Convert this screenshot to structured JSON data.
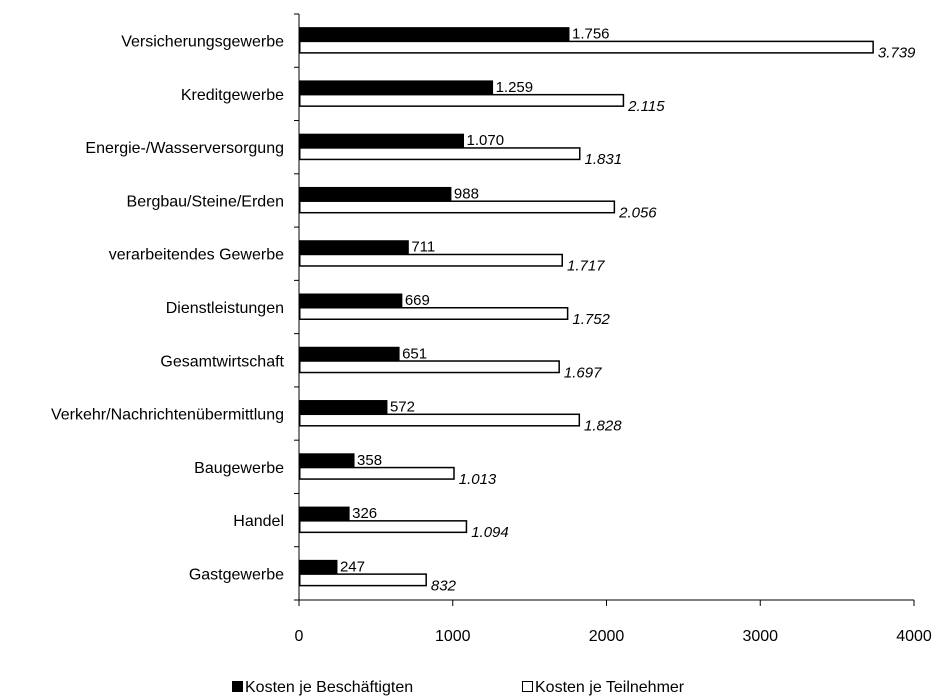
{
  "chart_data": {
    "type": "bar",
    "orientation": "horizontal",
    "categories": [
      "Versicherungsgewerbe",
      "Kreditgewerbe",
      "Energie-/Wasserversorgung",
      "Bergbau/Steine/Erden",
      "verarbeitendes Gewerbe",
      "Dienstleistungen",
      "Gesamtwirtschaft",
      "Verkehr/Nachrichtenübermittlung",
      "Baugewerbe",
      "Handel",
      "Gastgewerbe"
    ],
    "series": [
      {
        "name": "Kosten je Beschäftigten",
        "values": [
          1756,
          1259,
          1070,
          988,
          711,
          669,
          651,
          572,
          358,
          326,
          247
        ],
        "labels": [
          "1.756",
          "1.259",
          "1.070",
          "988",
          "711",
          "669",
          "651",
          "572",
          "358",
          "326",
          "247"
        ],
        "fill": "#000000"
      },
      {
        "name": "Kosten je Teilnehmer",
        "values": [
          3739,
          2115,
          1831,
          2056,
          1717,
          1752,
          1697,
          1828,
          1013,
          1094,
          832
        ],
        "labels": [
          "3.739",
          "2.115",
          "1.831",
          "2.056",
          "1.717",
          "1.752",
          "1.697",
          "1.828",
          "1.013",
          "1.094",
          "832"
        ],
        "fill": "#ffffff"
      }
    ],
    "xlim": [
      0,
      4000
    ],
    "xticks": [
      "0",
      "1000",
      "2000",
      "3000",
      "4000"
    ],
    "grid": false,
    "legend_position": "bottom"
  }
}
